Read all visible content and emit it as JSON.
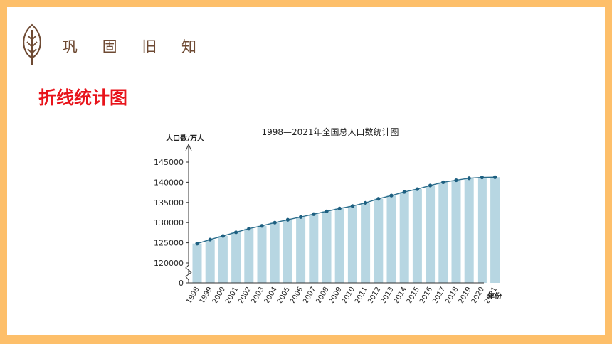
{
  "header": {
    "section_title": "巩 固 旧 知",
    "sub_title": "折线统计图"
  },
  "chart_data": {
    "type": "line",
    "title": "1998—2021年全国总人口数统计图",
    "ylabel": "人口数/万人",
    "xlabel": "年份",
    "axis_break": true,
    "ylim": [
      0,
      145000
    ],
    "yticks": [
      "0",
      "120000",
      "125000",
      "130000",
      "135000",
      "140000",
      "145000"
    ],
    "categories": [
      "1998",
      "1999",
      "2000",
      "2001",
      "2002",
      "2003",
      "2004",
      "2005",
      "2006",
      "2007",
      "2008",
      "2009",
      "2010",
      "2011",
      "2012",
      "2013",
      "2014",
      "2015",
      "2016",
      "2017",
      "2018",
      "2019",
      "2020",
      "2021"
    ],
    "values": [
      124800,
      125800,
      126700,
      127600,
      128500,
      129200,
      130000,
      130700,
      131400,
      132100,
      132800,
      133500,
      134100,
      134900,
      135900,
      136700,
      137600,
      138300,
      139200,
      140000,
      140500,
      141000,
      141200,
      141260
    ],
    "show_bars": true,
    "colors": {
      "line": "#2b6d8c",
      "bar": "#b7d6e2",
      "point": "#1d5f80",
      "axis": "#333333"
    }
  }
}
